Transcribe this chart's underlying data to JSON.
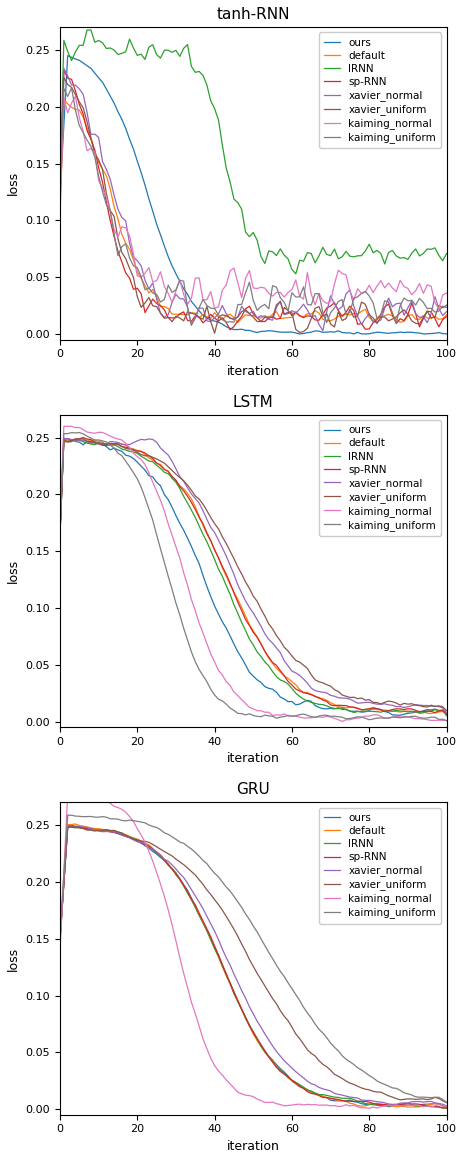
{
  "titles": [
    "tanh-RNN",
    "LSTM",
    "GRU"
  ],
  "xlabel": "iteration",
  "ylabel": "loss",
  "legend_labels": [
    "ours",
    "default",
    "IRNN",
    "sp-RNN",
    "xavier_normal",
    "xavier_uniform",
    "kaiming_normal",
    "kaiming_uniform"
  ],
  "colors": [
    "#1f77b4",
    "#ff7f0e",
    "#2ca02c",
    "#d62728",
    "#9467bd",
    "#8c564b",
    "#e377c2",
    "#7f7f7f"
  ],
  "n_iter": 101,
  "figsize": [
    4.64,
    11.6
  ],
  "dpi": 100
}
